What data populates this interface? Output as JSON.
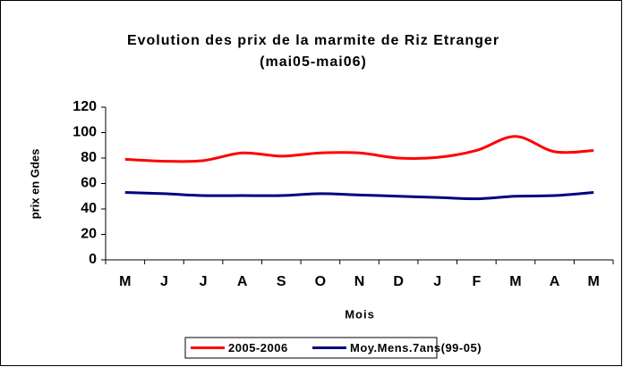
{
  "chart_data": {
    "type": "line",
    "title": "Evolution des prix de la marmite de Riz Etranger",
    "subtitle": "(mai05-mai06)",
    "y_label": "prix en Gdes",
    "x_label": "Mois",
    "categories": [
      "M",
      "J",
      "J",
      "A",
      "S",
      "O",
      "N",
      "D",
      "J",
      "F",
      "M",
      "A",
      "M"
    ],
    "series": [
      {
        "name": "2005-2006",
        "color": "#ff0000",
        "values": [
          79,
          77.5,
          78,
          84,
          81.5,
          84,
          84,
          80,
          80.5,
          86,
          97,
          85,
          86
        ]
      },
      {
        "name": "Moy.Mens.7ans(99-05)",
        "color": "#000080",
        "values": [
          53,
          52,
          50.5,
          50.5,
          50.5,
          52,
          51,
          50,
          49,
          48,
          50,
          50.5,
          53
        ]
      }
    ],
    "ylim": [
      0,
      120
    ],
    "yticks": [
      0,
      20,
      40,
      60,
      80,
      100,
      120
    ],
    "legend": "bottom",
    "smooth": true
  }
}
